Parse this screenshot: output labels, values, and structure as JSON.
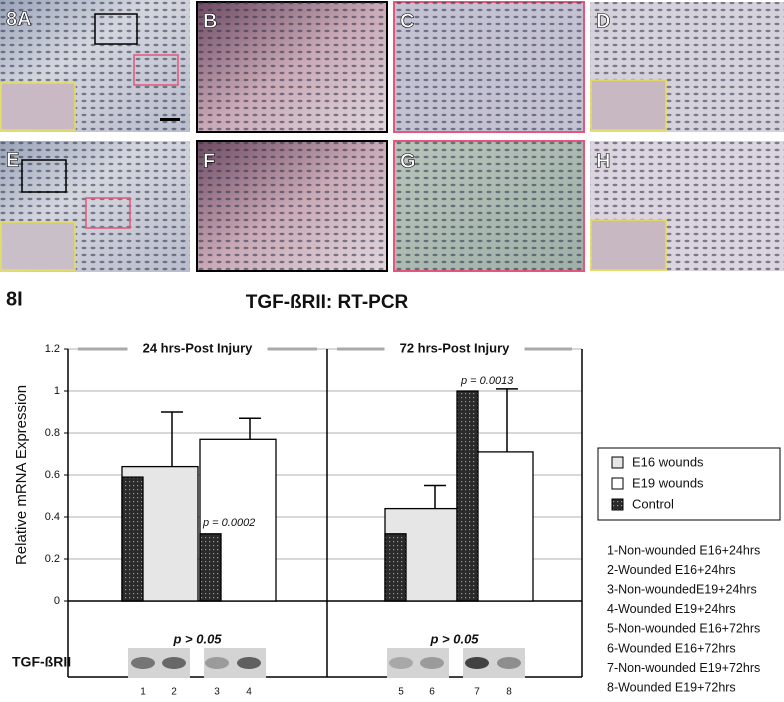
{
  "micrographs": {
    "labels": [
      "8A",
      "B",
      "C",
      "D",
      "E",
      "F",
      "G",
      "H"
    ]
  },
  "section_label": "8I",
  "chart_data": {
    "type": "bar",
    "title": "TGF-ßRII: RT-PCR",
    "y_label": "Relative mRNA Expression",
    "categories": [
      null,
      null,
      null,
      null
    ],
    "panels": [
      {
        "title": "24 hrs-Post Injury",
        "note": "p > 0.05"
      },
      {
        "title": "72 hrs-Post Injury",
        "note": "p > 0.05"
      }
    ],
    "series": [
      {
        "name": "E16 wounds",
        "color": "#e6e6e6",
        "values": [
          0.64,
          null,
          0.44,
          null
        ],
        "errors": [
          0.26,
          null,
          0.11,
          null
        ]
      },
      {
        "name": "E19 wounds",
        "color": "#ffffff",
        "values": [
          null,
          0.77,
          null,
          0.71
        ],
        "errors": [
          null,
          0.1,
          null,
          0.3
        ]
      },
      {
        "name": "Control",
        "color": "#2a2a2a",
        "values": [
          0.59,
          0.32,
          0.32,
          1.0
        ]
      }
    ],
    "annotations": [
      "p = 0.0002",
      "p = 0.0013"
    ],
    "ylim": [
      0,
      1.2
    ],
    "yticks": [
      0,
      0.2,
      0.4,
      0.6,
      0.8,
      1,
      1.2
    ],
    "grid": true,
    "legend": "right"
  },
  "gel": {
    "label": "TGF-ßRII",
    "lanes": [
      "1",
      "2",
      "3",
      "4",
      "5",
      "6",
      "7",
      "8"
    ]
  },
  "lane_key": [
    "1-Non-wounded E16+24hrs",
    "2-Wounded E16+24hrs",
    "3-Non-woundedE19+24hrs",
    "4-Wounded E19+24hrs",
    "5-Non-wounded E16+72hrs",
    "6-Wounded E16+72hrs",
    "7-Non-wounded E19+72hrs",
    "8-Wounded E19+72hrs"
  ]
}
